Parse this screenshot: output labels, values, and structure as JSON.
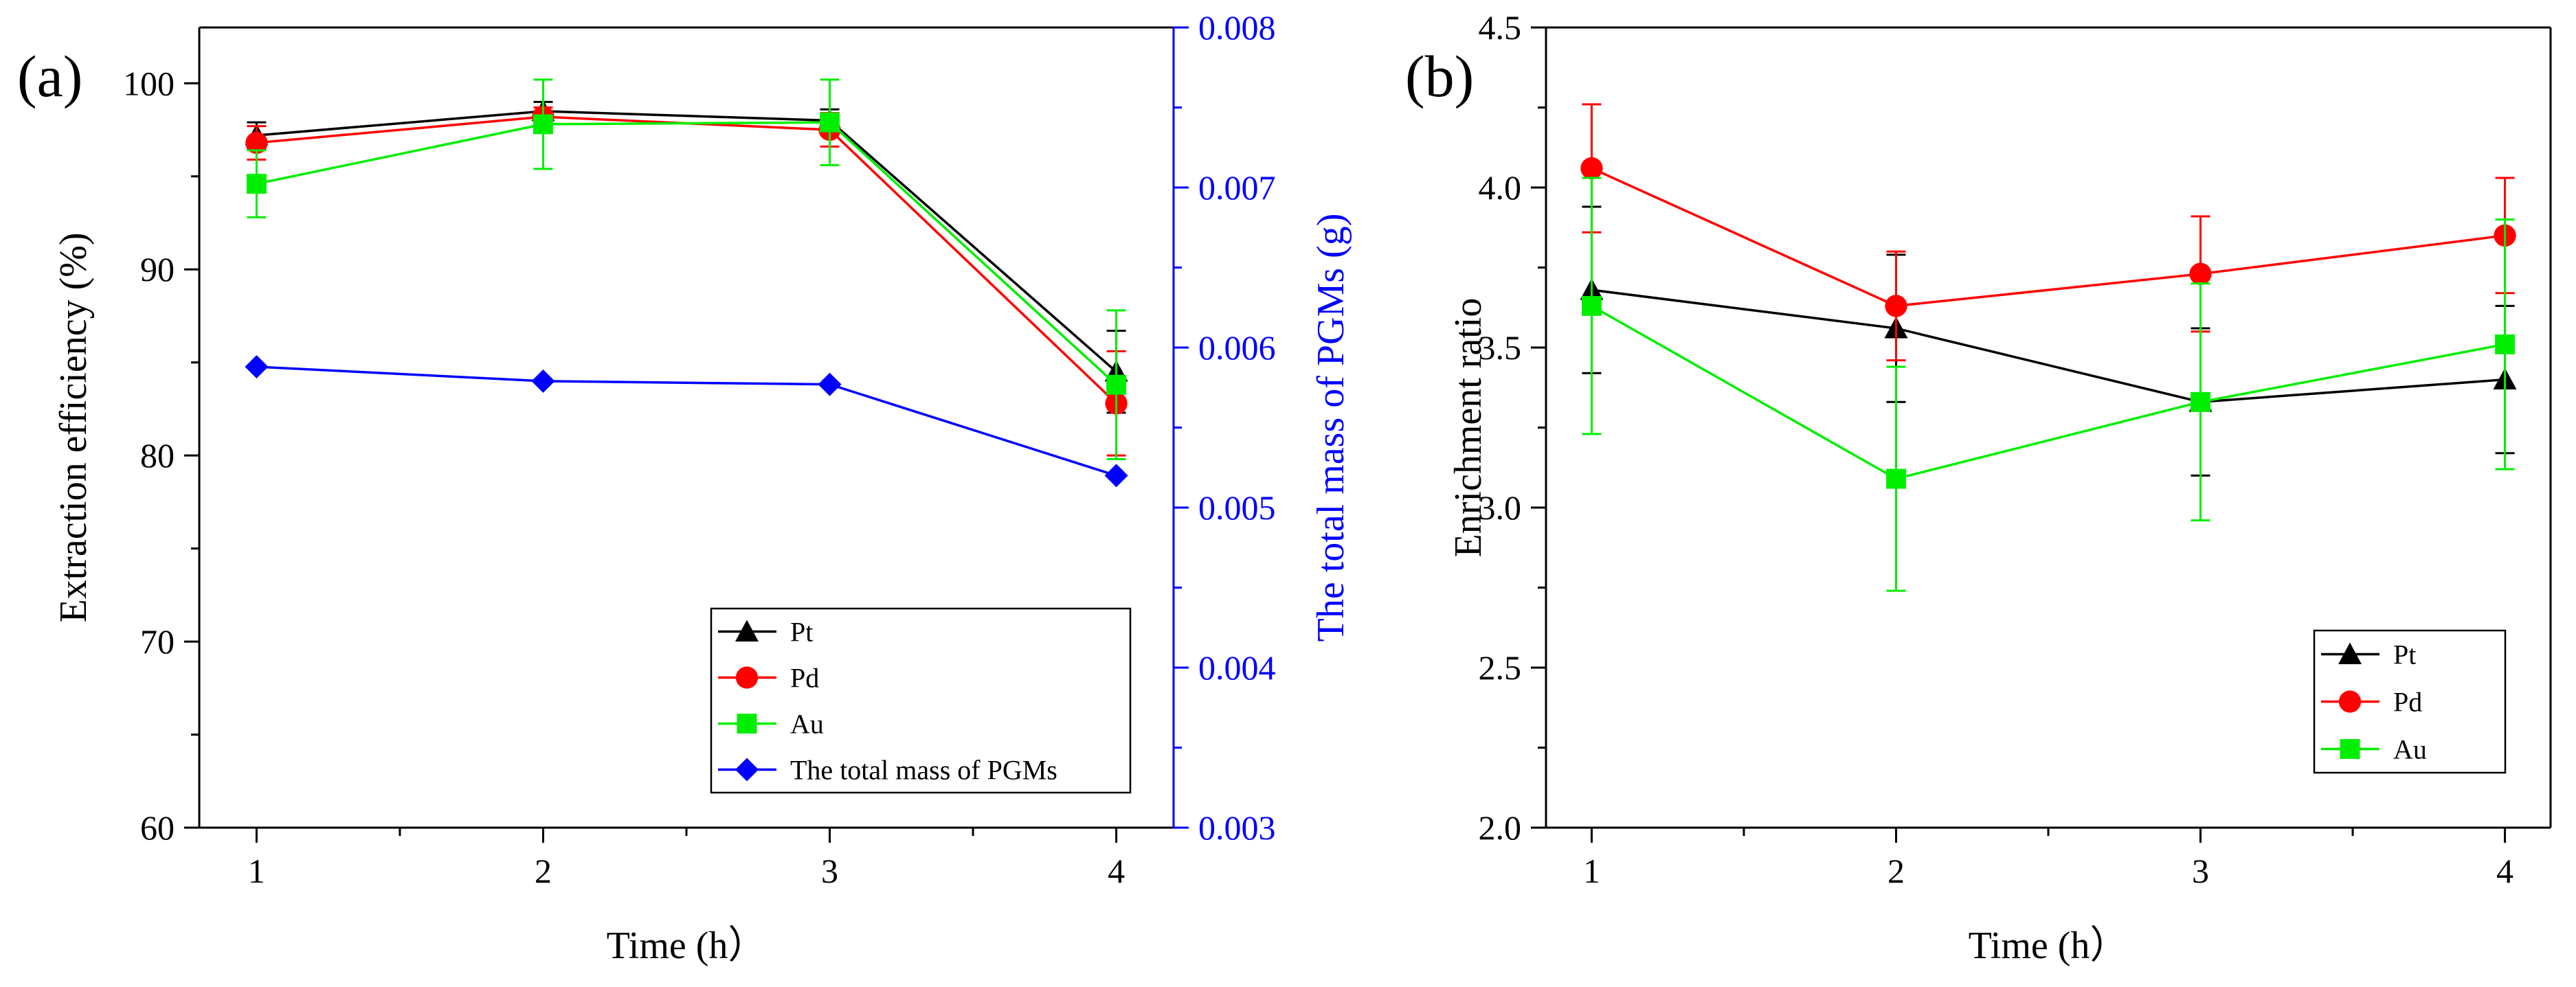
{
  "chart_data": [
    {
      "type": "line",
      "panel_label": "(a)",
      "xlabel": "Time (h）",
      "ylabel": "Extraction efficiency (%)",
      "y2label": "The total mass of PGMs (g)",
      "x": [
        1,
        2,
        3,
        4
      ],
      "xticks": [
        "1",
        "2",
        "3",
        "4"
      ],
      "xlim": [
        0.8,
        4.2
      ],
      "ylim": [
        60,
        103
      ],
      "yticks": [
        "60",
        "70",
        "80",
        "90",
        "100"
      ],
      "y2lim": [
        0.003,
        0.008
      ],
      "y2ticks": [
        "0.003",
        "0.004",
        "0.005",
        "0.006",
        "0.007",
        "0.008"
      ],
      "series": [
        {
          "name": "Pt",
          "color": "#000000",
          "marker": "triangle",
          "values": [
            97.2,
            98.5,
            98.0,
            84.5
          ],
          "err": [
            0.7,
            0.5,
            0.6,
            2.2
          ]
        },
        {
          "name": "Pd",
          "color": "#ff0000",
          "marker": "circle",
          "values": [
            96.8,
            98.2,
            97.5,
            82.8
          ],
          "err": [
            0.9,
            0.5,
            0.9,
            2.8
          ]
        },
        {
          "name": "Au",
          "color": "#00ee00",
          "marker": "square",
          "values": [
            94.6,
            97.8,
            97.9,
            83.8
          ],
          "err": [
            1.8,
            2.4,
            2.3,
            4.0
          ]
        },
        {
          "name": "The total mass of PGMs",
          "color": "#0000ff",
          "marker": "diamond",
          "axis": "right",
          "values": [
            0.00588,
            0.00579,
            0.00577,
            0.0052
          ],
          "err": [
            0,
            0,
            0,
            0
          ]
        }
      ],
      "legend": "bottom-right"
    },
    {
      "type": "line",
      "panel_label": "(b)",
      "xlabel": "Time (h）",
      "ylabel": "Enrichment ratio",
      "x": [
        1,
        2,
        3,
        4
      ],
      "xticks": [
        "1",
        "2",
        "3",
        "4"
      ],
      "xlim": [
        0.85,
        4.15
      ],
      "ylim": [
        2.0,
        4.5
      ],
      "yticks": [
        "2.0",
        "2.5",
        "3.0",
        "3.5",
        "4.0",
        "4.5"
      ],
      "series": [
        {
          "name": "Pt",
          "color": "#000000",
          "marker": "triangle",
          "values": [
            3.68,
            3.56,
            3.33,
            3.4
          ],
          "err": [
            0.26,
            0.23,
            0.23,
            0.23
          ]
        },
        {
          "name": "Pd",
          "color": "#ff0000",
          "marker": "circle",
          "values": [
            4.06,
            3.63,
            3.73,
            3.85
          ],
          "err": [
            0.2,
            0.17,
            0.18,
            0.18
          ]
        },
        {
          "name": "Au",
          "color": "#00ee00",
          "marker": "square",
          "values": [
            3.63,
            3.09,
            3.33,
            3.51
          ],
          "err": [
            0.4,
            0.35,
            0.37,
            0.39
          ]
        }
      ],
      "legend": "bottom-right"
    }
  ]
}
